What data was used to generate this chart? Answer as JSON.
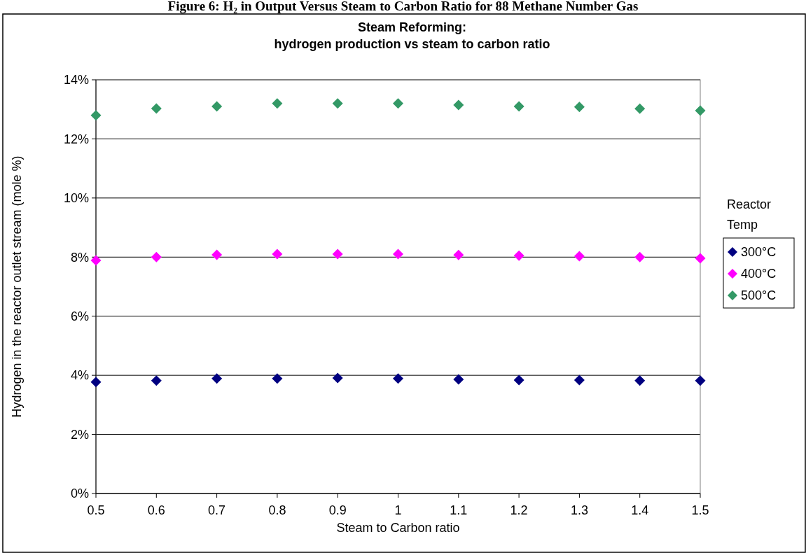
{
  "chart_data": {
    "type": "scatter",
    "title": "Steam Reforming:\nhydrogen production vs steam to carbon ratio",
    "annotations": [
      "Figure 6: H₂ in Output Versus Steam to Carbon Ratio for 88 Methane Number Gas"
    ],
    "xlabel": "Steam to Carbon ratio",
    "ylabel": "Hydrogen in the reactor outlet stream (mole %)",
    "legend_title": "Reactor Temp",
    "legend": "right",
    "marker": "diamond",
    "grid": "y",
    "x": [
      0.5,
      0.6,
      0.7,
      0.8,
      0.9,
      1,
      1.1,
      1.2,
      1.3,
      1.4,
      1.5
    ],
    "xlim": [
      0.5,
      1.5
    ],
    "xticks": [
      0.5,
      0.6,
      0.7,
      0.8,
      0.9,
      1,
      1.1,
      1.2,
      1.3,
      1.4,
      1.5
    ],
    "ylim": [
      0,
      14
    ],
    "yticks": [
      {
        "value": 0,
        "label": "0%"
      },
      {
        "value": 2,
        "label": "2%"
      },
      {
        "value": 4,
        "label": "4%"
      },
      {
        "value": 6,
        "label": "6%"
      },
      {
        "value": 8,
        "label": "8%"
      },
      {
        "value": 10,
        "label": "10%"
      },
      {
        "value": 12,
        "label": "12%"
      },
      {
        "value": 14,
        "label": "14%"
      }
    ],
    "series": [
      {
        "name": "300°C",
        "color": "#000080",
        "values": [
          3.77,
          3.82,
          3.89,
          3.89,
          3.91,
          3.89,
          3.86,
          3.84,
          3.84,
          3.82,
          3.82
        ]
      },
      {
        "name": "400°C",
        "color": "#ff00ff",
        "values": [
          7.89,
          8.0,
          8.08,
          8.1,
          8.1,
          8.1,
          8.07,
          8.05,
          8.03,
          8.0,
          7.96
        ]
      },
      {
        "name": "500°C",
        "color": "#339966",
        "values": [
          12.8,
          13.03,
          13.1,
          13.2,
          13.2,
          13.2,
          13.15,
          13.1,
          13.08,
          13.02,
          12.96
        ]
      }
    ]
  }
}
